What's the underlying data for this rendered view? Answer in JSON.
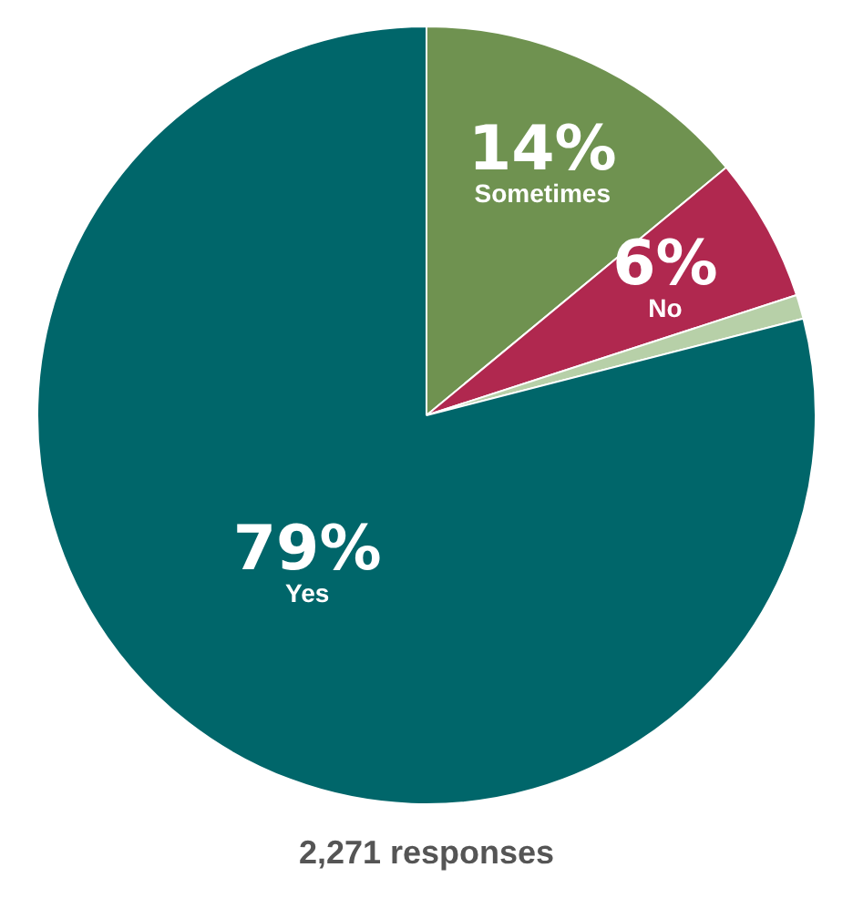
{
  "chart_data": {
    "type": "pie",
    "categories": [
      "Sometimes",
      "No",
      null,
      "Yes"
    ],
    "values": [
      14,
      6,
      1,
      79
    ],
    "value_labels": [
      "14%",
      "6%",
      null,
      "79%"
    ],
    "colors": [
      "#6f9250",
      "#b0284f",
      "#b7d0a8",
      "#00666a"
    ],
    "legend": false,
    "annotations": [
      "2,271 responses"
    ]
  }
}
